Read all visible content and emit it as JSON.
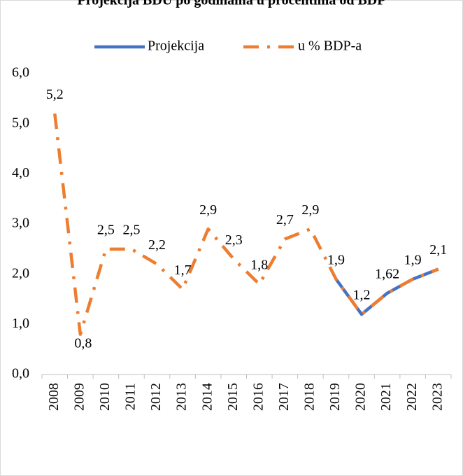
{
  "chart_data": {
    "type": "line",
    "title": "Projekcija BDU po godinama u procentima od BDP",
    "categories": [
      "2008",
      "2009",
      "2010",
      "2011",
      "2012",
      "2013",
      "2014",
      "2015",
      "2016",
      "2017",
      "2018",
      "2019",
      "2020",
      "2021",
      "2022",
      "2023"
    ],
    "series": [
      {
        "name": "Projekcija",
        "color": "#4472c4",
        "dash": "solid",
        "values": [
          null,
          null,
          null,
          null,
          null,
          null,
          null,
          null,
          null,
          null,
          null,
          1.9,
          1.2,
          1.62,
          1.9,
          2.1
        ]
      },
      {
        "name": "u % BDP-a",
        "color": "#ed7d31",
        "dash": "dashdot",
        "values": [
          5.2,
          0.8,
          2.5,
          2.5,
          2.2,
          1.7,
          2.9,
          2.3,
          1.8,
          2.7,
          2.9,
          1.9,
          1.2,
          1.62,
          1.9,
          2.1
        ],
        "value_labels": [
          "5,2",
          "0,8",
          "2,5",
          "2,5",
          "2,2",
          "1,7",
          "2,9",
          "2,3",
          "1,8",
          "2,7",
          "2,9",
          "1,9",
          "1,2",
          "1,62",
          "1,9",
          "2,1"
        ]
      }
    ],
    "ylim": [
      0,
      6
    ],
    "yticks": [
      {
        "value": 0,
        "label": "0,0"
      },
      {
        "value": 1,
        "label": "1,0"
      },
      {
        "value": 2,
        "label": "2,0"
      },
      {
        "value": 3,
        "label": "3,0"
      },
      {
        "value": 4,
        "label": "4,0"
      },
      {
        "value": 5,
        "label": "5,0"
      },
      {
        "value": 6,
        "label": "6,0"
      }
    ],
    "grid": false,
    "legend": "top"
  }
}
